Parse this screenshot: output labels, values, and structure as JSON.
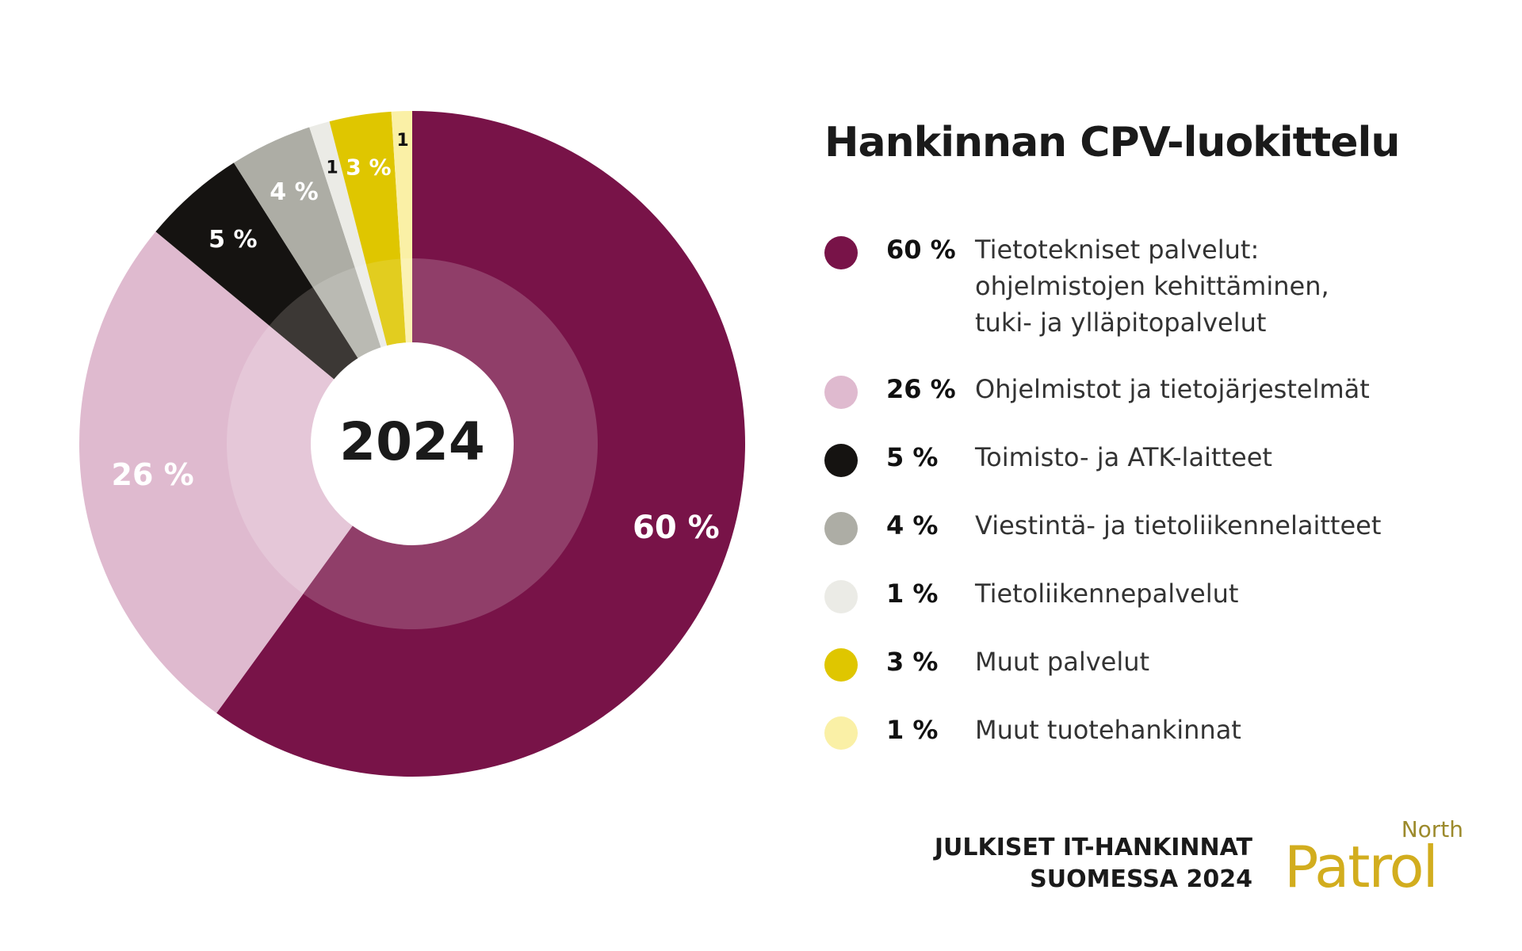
{
  "chart_data": {
    "type": "donut",
    "title": "Hankinnan CPV-luokittelu",
    "center_label": "2024",
    "unit": "%",
    "slices": [
      {
        "value": 60,
        "label": "60 %",
        "name": "Tietotekniset palvelut:\nohjelmistojen kehittäminen,\ntuki- ja ylläpitopalvelut",
        "color": "#781348",
        "inner_color": "#903e69",
        "label_color": "#ffffff"
      },
      {
        "value": 26,
        "label": "26 %",
        "name": "Ohjelmistot ja tietojärjestelmät",
        "color": "#dfbacf",
        "inner_color": "#e5c7d8",
        "label_color": "#ffffff"
      },
      {
        "value": 5,
        "label": "5 %",
        "name": "Toimisto- ja ATK-laitteet",
        "color": "#151311",
        "inner_color": "#3c3835",
        "label_color": "#ffffff"
      },
      {
        "value": 4,
        "label": "4 %",
        "name": "Viestintä- ja tietoliikennelaitteet",
        "color": "#adada5",
        "inner_color": "#babab3",
        "label_color": "#ffffff"
      },
      {
        "value": 1,
        "label": "1",
        "name": "Tietoliikennepalvelut",
        "color": "#ebebe6",
        "inner_color": "#ededea",
        "label_color": "#111111"
      },
      {
        "value": 3,
        "label": "3 %",
        "name": "Muut palvelut",
        "color": "#dfc600",
        "inner_color": "#e2cd1f",
        "label_color": "#ffffff"
      },
      {
        "value": 1,
        "label": "1",
        "name": "Muut tuotehankinnat",
        "color": "#faf0a6",
        "inner_color": "#fbf2b3",
        "label_color": "#111111"
      }
    ],
    "legend": [
      {
        "pct": "60 %",
        "text": "Tietotekniset palvelut:\nohjelmistojen kehittäminen,\ntuki- ja ylläpitopalvelut"
      },
      {
        "pct": "26 %",
        "text": "Ohjelmistot ja tietojärjestelmät"
      },
      {
        "pct": "5 %",
        "text": "Toimisto- ja ATK-laitteet"
      },
      {
        "pct": "4 %",
        "text": "Viestintä- ja tietoliikennelaitteet"
      },
      {
        "pct": "1 %",
        "text": "Tietoliikennepalvelut"
      },
      {
        "pct": "3 %",
        "text": "Muut palvelut"
      },
      {
        "pct": "1 %",
        "text": "Muut tuotehankinnat"
      }
    ],
    "legend_placement": "right"
  },
  "footer": {
    "line1": "JULKISET IT-HANKINNAT",
    "line2": "SUOMESSA 2024"
  },
  "logo": {
    "top_word": "North",
    "main_word": "Patrol"
  }
}
